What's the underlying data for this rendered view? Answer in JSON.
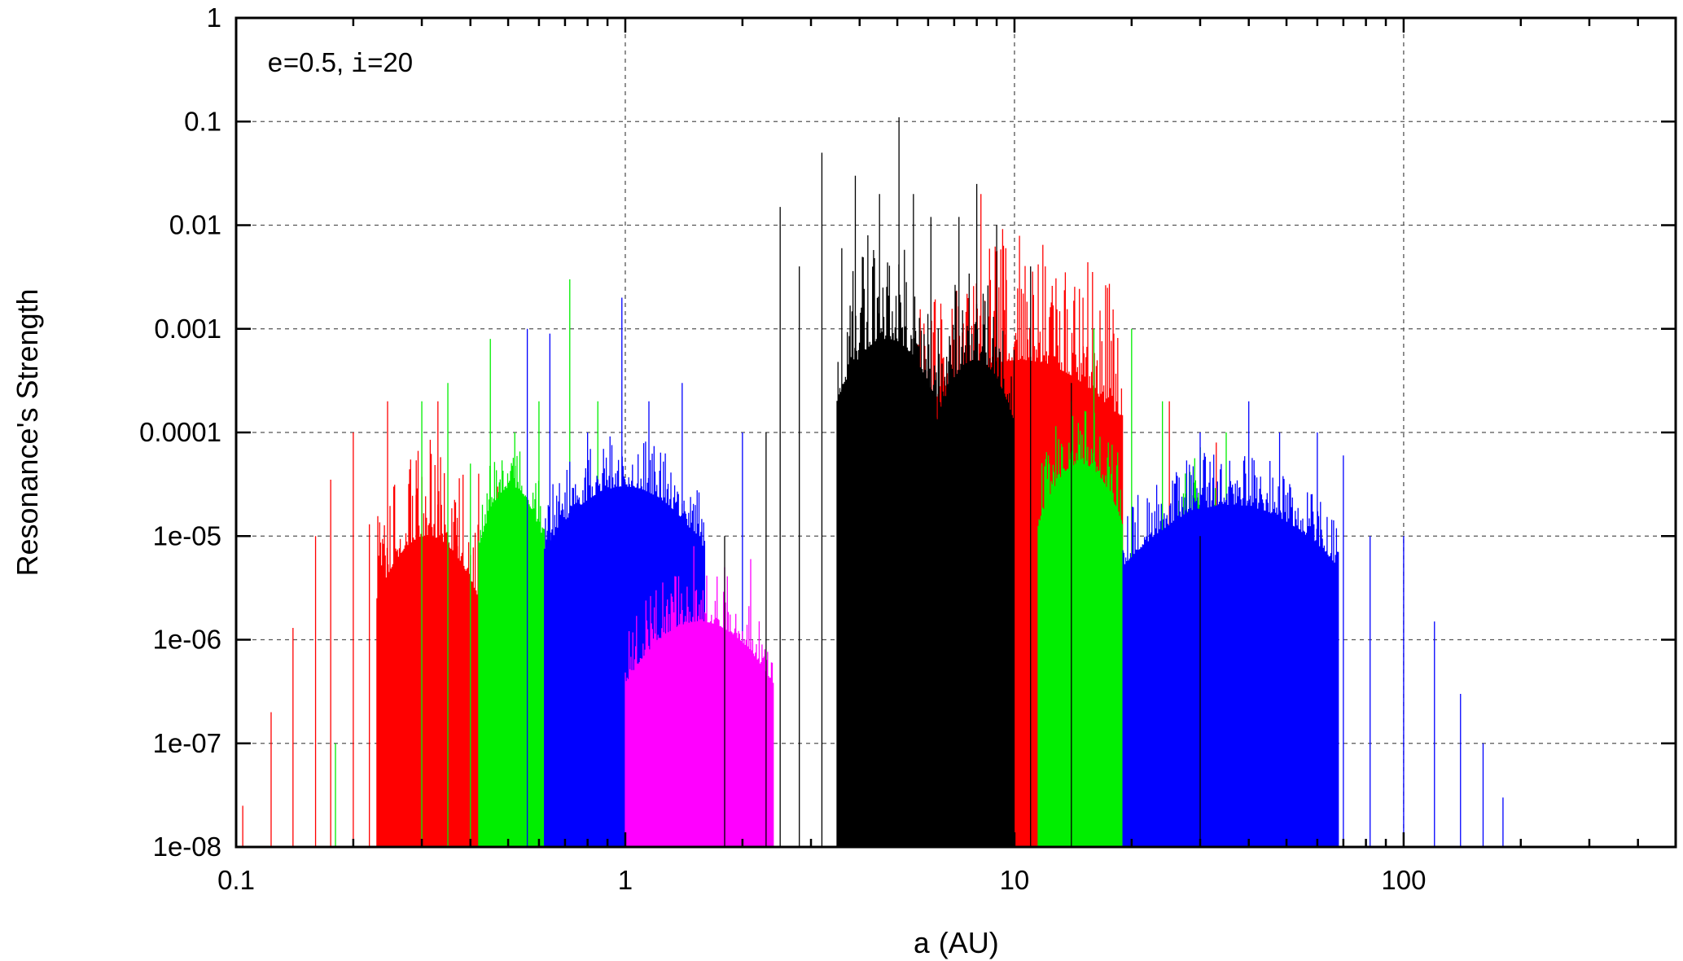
{
  "chart_data": {
    "type": "bar",
    "title": "",
    "xlabel": "a (AU)",
    "xlabel_var": "a",
    "xlabel_unit": " (AU)",
    "ylabel": "Resonance's Strength",
    "xscale": "log",
    "yscale": "log",
    "xlim": [
      0.1,
      500
    ],
    "ylim": [
      1e-08,
      1
    ],
    "grid": true,
    "legend": "none",
    "annotation": {
      "e_var": "e",
      "e_text": "=0.5, ",
      "i_var": "i",
      "i_text": "=20",
      "position": "top-left"
    },
    "x_ticks": [
      {
        "value": 0.1,
        "label": "0.1"
      },
      {
        "value": 1,
        "label": "1"
      },
      {
        "value": 10,
        "label": "10"
      },
      {
        "value": 100,
        "label": "100"
      }
    ],
    "y_ticks": [
      {
        "value": 1,
        "label": "1"
      },
      {
        "value": 0.1,
        "label": "0.1"
      },
      {
        "value": 0.01,
        "label": "0.01"
      },
      {
        "value": 0.001,
        "label": "0.001"
      },
      {
        "value": 0.0001,
        "label": "0.0001"
      },
      {
        "value": 1e-05,
        "label": "1e-05"
      },
      {
        "value": 1e-06,
        "label": "1e-06"
      },
      {
        "value": 1e-07,
        "label": "1e-07"
      },
      {
        "value": 1e-08,
        "label": "1e-08"
      }
    ],
    "series": [
      {
        "color": "#ff0000",
        "bands": [
          {
            "x": [
              0.23,
              0.42
            ],
            "y_top": 1e-05,
            "y_peak": 0.0001
          },
          {
            "x": [
              5.6,
              19
            ],
            "y_top": 0.0005,
            "y_peak": 0.01
          }
        ],
        "spikes": [
          [
            0.104,
            2.5e-08
          ],
          [
            0.123,
            2e-07
          ],
          [
            0.14,
            1.3e-06
          ],
          [
            0.16,
            1e-05
          ],
          [
            0.175,
            3.5e-05
          ],
          [
            0.2,
            0.0001
          ],
          [
            0.22,
            1.3e-05
          ],
          [
            0.245,
            0.0002
          ],
          [
            0.29,
            2.5e-05
          ],
          [
            0.33,
            0.0002
          ],
          [
            0.37,
            1.5e-05
          ],
          [
            0.42,
            4e-05
          ],
          [
            0.47,
            3e-05
          ],
          [
            8.2,
            0.02
          ],
          [
            9.5,
            0.006
          ],
          [
            12,
            0.004
          ],
          [
            15,
            0.002
          ],
          [
            18,
            0.0009
          ],
          [
            25,
            0.0002
          ],
          [
            33,
            8e-05
          ],
          [
            40,
            1e-05
          ]
        ]
      },
      {
        "color": "#00ee00",
        "bands": [
          {
            "x": [
              0.42,
              0.62
            ],
            "y_top": 3e-05,
            "y_peak": 0.0001
          },
          {
            "x": [
              11.5,
              19
            ],
            "y_top": 5e-05,
            "y_peak": 0.0002
          },
          {
            "x": [
              26,
              34
            ],
            "y_top": 2e-05,
            "y_peak": 0.0001
          }
        ],
        "spikes": [
          [
            0.18,
            1e-07
          ],
          [
            0.3,
            0.0002
          ],
          [
            0.35,
            0.0003
          ],
          [
            0.4,
            5e-05
          ],
          [
            0.45,
            0.0008
          ],
          [
            0.52,
            0.0001
          ],
          [
            0.6,
            0.0002
          ],
          [
            0.72,
            0.003
          ],
          [
            0.85,
            0.0002
          ],
          [
            14,
            0.0002
          ],
          [
            16,
            0.001
          ],
          [
            20,
            0.001
          ],
          [
            24,
            0.0002
          ],
          [
            35,
            0.0001
          ],
          [
            50,
            1e-06
          ],
          [
            60,
            1e-06
          ]
        ]
      },
      {
        "color": "#0000ff",
        "bands": [
          {
            "x": [
              0.62,
              1.6
            ],
            "y_top": 3e-05,
            "y_peak": 0.0001
          },
          {
            "x": [
              19,
              68
            ],
            "y_top": 2e-05,
            "y_peak": 7e-05
          }
        ],
        "spikes": [
          [
            0.56,
            0.001
          ],
          [
            0.64,
            0.0009
          ],
          [
            0.8,
            0.0001
          ],
          [
            0.98,
            0.002
          ],
          [
            1.15,
            0.0002
          ],
          [
            1.4,
            0.0003
          ],
          [
            2.0,
            0.0001
          ],
          [
            30,
            0.0001
          ],
          [
            40,
            0.0002
          ],
          [
            48,
            0.0001
          ],
          [
            60,
            0.0001
          ],
          [
            70,
            6e-05
          ],
          [
            82,
            1e-05
          ],
          [
            100,
            1e-05
          ],
          [
            120,
            1.5e-06
          ],
          [
            140,
            3e-07
          ],
          [
            160,
            1e-07
          ],
          [
            180,
            3e-08
          ],
          [
            205,
            1e-08
          ]
        ]
      },
      {
        "color": "#ff00ff",
        "bands": [
          {
            "x": [
              1.0,
              2.4
            ],
            "y_top": 1.5e-06,
            "y_peak": 5e-06
          }
        ],
        "spikes": [
          [
            1.2,
            3e-06
          ],
          [
            1.5,
            8e-06
          ],
          [
            1.8,
            5e-06
          ],
          [
            2.1,
            6e-06
          ]
        ]
      },
      {
        "color": "#000000",
        "bands": [
          {
            "x": [
              3.5,
              6.3
            ],
            "y_top": 0.0008,
            "y_peak": 0.008
          },
          {
            "x": [
              6.3,
              10
            ],
            "y_top": 0.0005,
            "y_peak": 0.004
          }
        ],
        "spikes": [
          [
            1.8,
            1e-05
          ],
          [
            2.3,
            0.0001
          ],
          [
            2.5,
            0.015
          ],
          [
            2.8,
            0.004
          ],
          [
            3.2,
            0.05
          ],
          [
            3.6,
            0.006
          ],
          [
            3.9,
            0.03
          ],
          [
            4.2,
            0.008
          ],
          [
            4.5,
            0.02
          ],
          [
            5.05,
            0.11
          ],
          [
            5.5,
            0.02
          ],
          [
            6.1,
            0.012
          ],
          [
            7.2,
            0.012
          ],
          [
            8.0,
            0.025
          ],
          [
            9.0,
            0.01
          ],
          [
            11,
            0.004
          ],
          [
            14,
            0.0003
          ],
          [
            30,
            1e-05
          ]
        ]
      }
    ]
  }
}
